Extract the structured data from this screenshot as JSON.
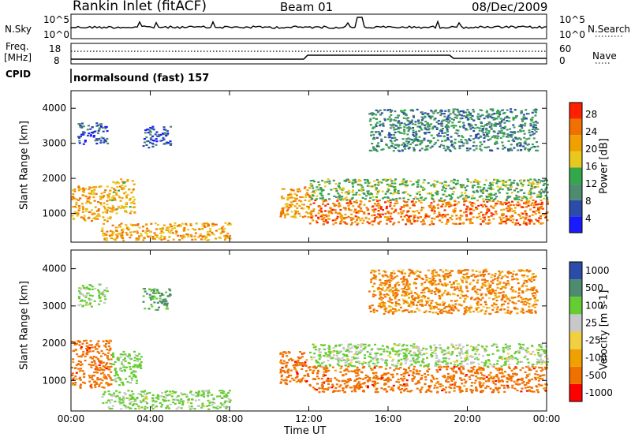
{
  "header": {
    "station": "Rankin Inlet (fitACF)",
    "beam": "Beam 01",
    "date": "08/Dec/2009"
  },
  "summary_panel": {
    "left_label_top": "N.Sky",
    "left_ticks": [
      "10^5",
      "10^0"
    ],
    "right_label": "N.Search",
    "right_ticks": [
      "10^5",
      "10^0"
    ],
    "freq_label_1": "Freq.",
    "freq_label_2": "[MHz]",
    "freq_ticks": [
      "18",
      "8"
    ],
    "nave_label": "Nave",
    "nave_ticks": [
      "60",
      "0"
    ],
    "cpid_label": "CPID",
    "cpid_text": "normalsound (fast) 157"
  },
  "colors": {
    "power_scale": [
      "#1a1aff",
      "#2b4ca8",
      "#4d8c6e",
      "#33a84a",
      "#e8c81e",
      "#f0a000",
      "#f07000",
      "#ff2000"
    ],
    "velocity_scale": [
      "#ff0000",
      "#f07000",
      "#f0a000",
      "#f0d040",
      "#c8c8c8",
      "#66cc33",
      "#4d8c6e",
      "#2b4ca8"
    ]
  },
  "chart_data": [
    {
      "type": "heatmap",
      "title": "",
      "xlabel": "Time UT",
      "ylabel": "Slant Range [km]",
      "colorbar_label": "Power [dB]",
      "colorbar_ticks": [
        "28",
        "24",
        "20",
        "16",
        "12",
        "8",
        "4"
      ],
      "x_ticks": [
        "00:00",
        "04:00",
        "08:00",
        "12:00",
        "16:00",
        "20:00",
        "00:00"
      ],
      "y_ticks": [
        "4000",
        "3000",
        "2000",
        "1000"
      ],
      "xlim_hours": [
        0,
        24
      ],
      "ylim_km": [
        180,
        4500
      ],
      "regions": [
        {
          "t0": 0.0,
          "t1": 2.0,
          "r0": 800,
          "r1": 1800,
          "value": 22
        },
        {
          "t0": 2.0,
          "t1": 3.2,
          "r0": 1000,
          "r1": 2000,
          "value": 20
        },
        {
          "t0": 0.3,
          "t1": 1.8,
          "r0": 3000,
          "r1": 3600,
          "value": 6
        },
        {
          "t0": 3.6,
          "t1": 5.0,
          "r0": 2900,
          "r1": 3500,
          "value": 6
        },
        {
          "t0": 1.5,
          "t1": 8.0,
          "r0": 250,
          "r1": 750,
          "value": 22
        },
        {
          "t0": 10.5,
          "t1": 12.0,
          "r0": 900,
          "r1": 1800,
          "value": 22
        },
        {
          "t0": 12.0,
          "t1": 24.0,
          "r0": 700,
          "r1": 1400,
          "value": 26
        },
        {
          "t0": 12.0,
          "t1": 24.0,
          "r0": 1400,
          "r1": 2000,
          "value": 14
        },
        {
          "t0": 15.0,
          "t1": 23.5,
          "r0": 2800,
          "r1": 4000,
          "value": 10
        }
      ]
    },
    {
      "type": "heatmap",
      "title": "",
      "xlabel": "Time UT",
      "ylabel": "Slant Range [km]",
      "colorbar_label": "Velocity [m s-1]",
      "colorbar_ticks": [
        "1000",
        "500",
        "100",
        "25",
        "-25",
        "-100",
        "-500",
        "-1000"
      ],
      "x_ticks": [
        "00:00",
        "04:00",
        "08:00",
        "12:00",
        "16:00",
        "20:00",
        "00:00"
      ],
      "y_ticks": [
        "4000",
        "3000",
        "2000",
        "1000"
      ],
      "xlim_hours": [
        0,
        24
      ],
      "ylim_km": [
        180,
        4500
      ],
      "regions": [
        {
          "t0": 0.0,
          "t1": 2.0,
          "r0": 800,
          "r1": 2100,
          "value": -300
        },
        {
          "t0": 2.0,
          "t1": 3.5,
          "r0": 900,
          "r1": 1800,
          "value": 200
        },
        {
          "t0": 0.3,
          "t1": 1.8,
          "r0": 3000,
          "r1": 3600,
          "value": 150
        },
        {
          "t0": 3.6,
          "t1": 5.0,
          "r0": 2900,
          "r1": 3500,
          "value": 600
        },
        {
          "t0": 1.5,
          "t1": 8.0,
          "r0": 250,
          "r1": 750,
          "value": 150
        },
        {
          "t0": 10.5,
          "t1": 12.0,
          "r0": 900,
          "r1": 1800,
          "value": -300
        },
        {
          "t0": 12.0,
          "t1": 24.0,
          "r0": 700,
          "r1": 1400,
          "value": -300
        },
        {
          "t0": 12.0,
          "t1": 24.0,
          "r0": 1400,
          "r1": 2000,
          "value": 120
        },
        {
          "t0": 15.0,
          "t1": 23.5,
          "r0": 2800,
          "r1": 4000,
          "value": -120
        }
      ]
    }
  ]
}
